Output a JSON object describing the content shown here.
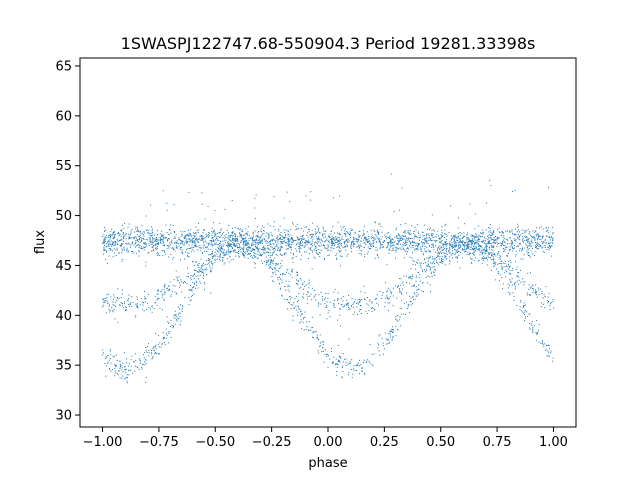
{
  "chart_data": {
    "type": "scatter",
    "title": "1SWASPJ122747.68-550904.3 Period 19281.33398s",
    "xlabel": "phase",
    "ylabel": "flux",
    "xlim": [
      -1.1,
      1.1
    ],
    "ylim": [
      28.8,
      65.8
    ],
    "x_ticks": [
      -1.0,
      -0.75,
      -0.5,
      -0.25,
      0.0,
      0.25,
      0.5,
      0.75,
      1.0
    ],
    "x_tick_labels": [
      "−1.00",
      "−0.75",
      "−0.50",
      "−0.25",
      "0.00",
      "0.25",
      "0.50",
      "0.75",
      "1.00"
    ],
    "y_ticks": [
      30,
      35,
      40,
      45,
      50,
      55,
      60,
      65
    ],
    "y_tick_labels": [
      "30",
      "35",
      "40",
      "45",
      "50",
      "55",
      "60",
      "65"
    ],
    "grid": false,
    "marker_color": "#1f77b4",
    "series": [
      {
        "description": "baseline",
        "profile": [
          [
            -1.0,
            47.4
          ],
          [
            1.0,
            47.4
          ]
        ],
        "scatter": 0.7
      },
      {
        "description": "shallow eclipse branch",
        "profile": [
          [
            -1.0,
            41.2
          ],
          [
            -0.9,
            40.9
          ],
          [
            -0.8,
            41.3
          ],
          [
            -0.7,
            42.6
          ],
          [
            -0.6,
            44.3
          ],
          [
            -0.5,
            46.0
          ],
          [
            -0.4,
            47.0
          ],
          [
            -0.3,
            46.3
          ],
          [
            -0.2,
            44.5
          ],
          [
            -0.1,
            42.6
          ],
          [
            0.0,
            41.2
          ],
          [
            0.1,
            40.8
          ],
          [
            0.2,
            41.3
          ],
          [
            0.3,
            42.5
          ],
          [
            0.4,
            44.3
          ],
          [
            0.5,
            46.0
          ],
          [
            0.6,
            47.0
          ],
          [
            0.7,
            46.3
          ],
          [
            0.8,
            44.5
          ],
          [
            0.9,
            42.6
          ],
          [
            1.0,
            41.2
          ]
        ],
        "scatter": 0.6
      },
      {
        "description": "deep eclipse branch",
        "profile": [
          [
            -1.0,
            35.6
          ],
          [
            -0.9,
            34.5
          ],
          [
            -0.8,
            35.7
          ],
          [
            -0.7,
            38.8
          ],
          [
            -0.6,
            42.8
          ],
          [
            -0.5,
            45.8
          ],
          [
            -0.4,
            47.0
          ],
          [
            -0.3,
            46.3
          ],
          [
            -0.2,
            43.0
          ],
          [
            -0.1,
            39.2
          ],
          [
            0.0,
            36.0
          ],
          [
            0.1,
            34.5
          ],
          [
            0.2,
            35.6
          ],
          [
            0.3,
            38.8
          ],
          [
            0.4,
            42.8
          ],
          [
            0.5,
            45.8
          ],
          [
            0.6,
            47.0
          ],
          [
            0.7,
            46.3
          ],
          [
            0.8,
            43.0
          ],
          [
            0.9,
            39.2
          ],
          [
            1.0,
            35.6
          ]
        ],
        "scatter": 0.6
      }
    ]
  }
}
